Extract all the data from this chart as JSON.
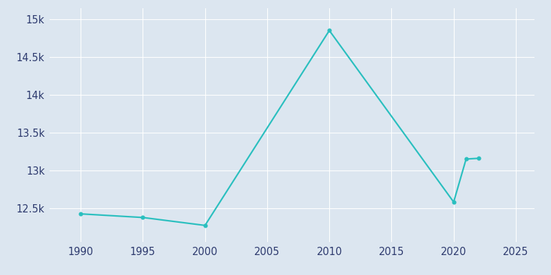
{
  "years": [
    1990,
    1995,
    2000,
    2010,
    2020,
    2021,
    2022
  ],
  "population": [
    12423,
    12375,
    12270,
    14855,
    12580,
    13150,
    13160
  ],
  "line_color": "#2abfbf",
  "bg_color": "#dce6f0",
  "plot_bg_color": "#dce6f0",
  "grid_color": "#ffffff",
  "tick_color": "#2d3a6e",
  "ylim": [
    12050,
    15150
  ],
  "xlim": [
    1987.5,
    2026.5
  ],
  "yticks": [
    12500,
    13000,
    13500,
    14000,
    14500,
    15000
  ],
  "ytick_labels": [
    "12.5k",
    "13k",
    "13.5k",
    "14k",
    "14.5k",
    "15k"
  ],
  "xticks": [
    1990,
    1995,
    2000,
    2005,
    2010,
    2015,
    2020,
    2025
  ],
  "line_width": 1.6,
  "marker": "o",
  "marker_size": 3.5
}
